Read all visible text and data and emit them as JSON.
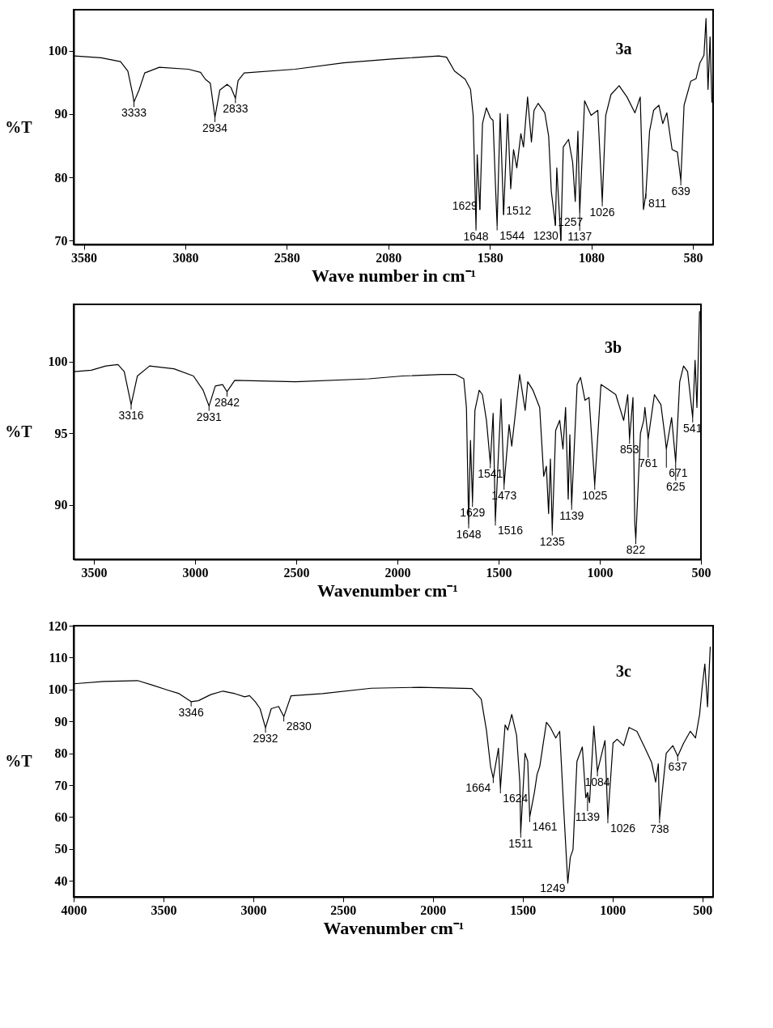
{
  "chart_data": [
    {
      "type": "line",
      "title": "3a",
      "xlabel": "Wave number in cm⁻¹",
      "ylabel": "%T",
      "xlim": [
        3630,
        480
      ],
      "ylim": [
        69.4,
        106.5
      ],
      "xticks": [
        3580,
        3080,
        2580,
        2080,
        1580,
        1080,
        580
      ],
      "yticks": [
        70,
        80,
        90,
        100
      ],
      "x": [
        3626,
        3495,
        3399,
        3363,
        3339,
        3333,
        3308,
        3280,
        3208,
        3065,
        3005,
        2981,
        2957,
        2934,
        2910,
        2874,
        2855,
        2833,
        2820,
        2790,
        2539,
        2301,
        2062,
        2015,
        1832,
        1793,
        1754,
        1701,
        1675,
        1662,
        1648,
        1642,
        1629,
        1616,
        1597,
        1577,
        1564,
        1551,
        1544,
        1529,
        1512,
        1492,
        1477,
        1463,
        1447,
        1427,
        1414,
        1394,
        1375,
        1362,
        1342,
        1309,
        1290,
        1277,
        1257,
        1250,
        1230,
        1218,
        1192,
        1172,
        1159,
        1146,
        1137,
        1113,
        1081,
        1048,
        1026,
        1009,
        983,
        943,
        904,
        865,
        839,
        823,
        811,
        793,
        773,
        747,
        728,
        708,
        682,
        656,
        639,
        623,
        590,
        564,
        545,
        525,
        515,
        505,
        495,
        486
      ],
      "series": [
        {
          "color": "#000000",
          "values": [
            99.2,
            98.9,
            98.3,
            96.8,
            93.1,
            91.9,
            93.8,
            96.5,
            97.4,
            97.1,
            96.6,
            95.5,
            94.9,
            89.5,
            93.8,
            94.7,
            94.2,
            92.5,
            95.3,
            96.5,
            97.1,
            98.1,
            98.7,
            98.8,
            99.2,
            99.0,
            96.8,
            95.5,
            93.9,
            89.8,
            72.0,
            83.6,
            74.9,
            88.5,
            91.0,
            89.4,
            89.0,
            77.8,
            72.4,
            90.1,
            74.1,
            90.0,
            78.2,
            84.4,
            81.5,
            86.9,
            84.8,
            92.7,
            85.6,
            90.6,
            91.7,
            90.2,
            86.5,
            77.8,
            72.4,
            81.5,
            70.0,
            84.8,
            86.0,
            82.4,
            76.2,
            87.3,
            74.5,
            92.1,
            89.8,
            90.6,
            76.2,
            89.8,
            93.1,
            94.5,
            92.7,
            90.2,
            92.7,
            74.9,
            77.4,
            87.3,
            90.6,
            91.4,
            88.5,
            90.2,
            84.4,
            84.0,
            79.5,
            91.4,
            95.2,
            95.6,
            98.1,
            99.3,
            105.1,
            93.9,
            102.2,
            91.9
          ]
        }
      ],
      "annotations": [
        {
          "text": "3333",
          "x": 3333,
          "y": 91.9
        },
        {
          "text": "2934",
          "x": 2934,
          "y": 89.5
        },
        {
          "text": "2833",
          "x": 2833,
          "y": 92.5
        },
        {
          "text": "1648",
          "x": 1648,
          "y": 72.0
        },
        {
          "text": "1629",
          "x": 1629,
          "y": 74.9
        },
        {
          "text": "1544",
          "x": 1544,
          "y": 72.4
        },
        {
          "text": "1512",
          "x": 1512,
          "y": 74.1
        },
        {
          "text": "1257",
          "x": 1257,
          "y": 72.4
        },
        {
          "text": "1230",
          "x": 1230,
          "y": 70.0
        },
        {
          "text": "1137",
          "x": 1137,
          "y": 74.5
        },
        {
          "text": "1026",
          "x": 1026,
          "y": 76.2
        },
        {
          "text": "811",
          "x": 811,
          "y": 77.4
        },
        {
          "text": "639",
          "x": 639,
          "y": 79.5
        }
      ]
    },
    {
      "type": "line",
      "title": "3b",
      "xlabel": "Wavenumber cm⁻¹",
      "ylabel": "%T",
      "xlim": [
        3600,
        500
      ],
      "ylim": [
        86.2,
        104
      ],
      "xticks": [
        3500,
        3000,
        2500,
        2000,
        1500,
        1000,
        500
      ],
      "yticks": [
        90,
        95,
        100
      ],
      "x": [
        3598,
        3513,
        3441,
        3381,
        3350,
        3316,
        3285,
        3225,
        3104,
        3008,
        2960,
        2931,
        2900,
        2864,
        2842,
        2804,
        2503,
        2142,
        1975,
        1781,
        1712,
        1672,
        1659,
        1648,
        1639,
        1629,
        1617,
        1596,
        1580,
        1560,
        1541,
        1527,
        1516,
        1488,
        1473,
        1448,
        1435,
        1396,
        1369,
        1356,
        1330,
        1297,
        1277,
        1264,
        1253,
        1244,
        1235,
        1218,
        1198,
        1182,
        1169,
        1156,
        1148,
        1139,
        1112,
        1095,
        1073,
        1053,
        1025,
        994,
        961,
        921,
        882,
        862,
        853,
        836,
        827,
        822,
        799,
        783,
        777,
        761,
        730,
        698,
        678,
        671,
        645,
        625,
        605,
        586,
        566,
        541,
        529,
        520,
        507
      ],
      "series": [
        {
          "color": "#000000",
          "values": [
            99.3,
            99.4,
            99.7,
            99.8,
            99.3,
            97.0,
            99.0,
            99.7,
            99.5,
            99.0,
            98.0,
            96.9,
            98.3,
            98.4,
            97.9,
            98.7,
            98.6,
            98.8,
            99.0,
            99.1,
            99.1,
            98.8,
            96.8,
            88.7,
            94.5,
            90.2,
            96.6,
            98.0,
            97.7,
            95.9,
            92.9,
            96.4,
            88.9,
            97.4,
            91.4,
            95.6,
            94.1,
            99.1,
            96.6,
            98.6,
            98.0,
            96.8,
            92.0,
            92.7,
            89.4,
            93.2,
            88.2,
            95.2,
            95.9,
            93.9,
            96.8,
            90.4,
            94.9,
            90.0,
            98.4,
            98.9,
            97.3,
            97.5,
            91.4,
            98.4,
            98.1,
            97.7,
            95.9,
            97.7,
            94.6,
            97.5,
            88.7,
            87.6,
            95.0,
            95.9,
            96.8,
            94.6,
            97.7,
            97.0,
            94.8,
            93.9,
            96.1,
            93.0,
            98.6,
            99.7,
            99.3,
            96.1,
            100.1,
            96.8,
            103.5
          ]
        }
      ],
      "annotations": [
        {
          "text": "3316",
          "x": 3316,
          "y": 97.0
        },
        {
          "text": "2931",
          "x": 2931,
          "y": 96.9
        },
        {
          "text": "2842",
          "x": 2842,
          "y": 97.9
        },
        {
          "text": "1648",
          "x": 1648,
          "y": 88.7
        },
        {
          "text": "1629",
          "x": 1629,
          "y": 90.2
        },
        {
          "text": "1541",
          "x": 1541,
          "y": 92.9
        },
        {
          "text": "1516",
          "x": 1516,
          "y": 88.9
        },
        {
          "text": "1473",
          "x": 1473,
          "y": 91.4
        },
        {
          "text": "1235",
          "x": 1235,
          "y": 88.2
        },
        {
          "text": "1139",
          "x": 1139,
          "y": 90.0
        },
        {
          "text": "1025",
          "x": 1025,
          "y": 91.4
        },
        {
          "text": "853",
          "x": 853,
          "y": 94.6
        },
        {
          "text": "822",
          "x": 822,
          "y": 87.6
        },
        {
          "text": "761",
          "x": 761,
          "y": 94.6
        },
        {
          "text": "671",
          "x": 671,
          "y": 93.9
        },
        {
          "text": "625",
          "x": 625,
          "y": 93.0
        },
        {
          "text": "541",
          "x": 541,
          "y": 96.1
        }
      ]
    },
    {
      "type": "line",
      "title": "3c",
      "xlabel": "Wavenumber cm⁻¹",
      "ylabel": "%T",
      "xlim": [
        4000,
        440
      ],
      "ylim": [
        35,
        120
      ],
      "xticks": [
        4000,
        3500,
        3000,
        2500,
        2000,
        1500,
        1000,
        500
      ],
      "yticks": [
        40,
        50,
        60,
        70,
        80,
        90,
        100,
        110,
        120
      ],
      "x": [
        4000,
        3833,
        3644,
        3562,
        3481,
        3413,
        3346,
        3305,
        3237,
        3169,
        3102,
        3048,
        3021,
        2989,
        2962,
        2932,
        2900,
        2859,
        2830,
        2790,
        2614,
        2343,
        2072,
        1783,
        1731,
        1702,
        1679,
        1664,
        1635,
        1624,
        1598,
        1583,
        1561,
        1534,
        1516,
        1511,
        1487,
        1472,
        1461,
        1435,
        1420,
        1405,
        1368,
        1346,
        1316,
        1294,
        1272,
        1249,
        1235,
        1220,
        1198,
        1168,
        1149,
        1139,
        1128,
        1104,
        1084,
        1042,
        1026,
        997,
        975,
        938,
        908,
        864,
        819,
        782,
        760,
        745,
        738,
        701,
        664,
        637,
        604,
        567,
        538,
        515,
        500,
        486,
        471,
        456
      ],
      "series": [
        {
          "color": "#000000",
          "values": [
            101.8,
            102.5,
            102.8,
            101.4,
            99.9,
            98.7,
            96.2,
            96.5,
            98.4,
            99.5,
            98.7,
            97.7,
            98.1,
            96.2,
            94.0,
            88.0,
            94.0,
            94.7,
            91.5,
            98.0,
            98.7,
            100.4,
            100.7,
            100.3,
            97.0,
            87.3,
            75.9,
            72.2,
            81.6,
            69.0,
            88.9,
            87.3,
            92.2,
            85.6,
            71.0,
            55.1,
            80.0,
            77.5,
            60.0,
            67.7,
            73.4,
            75.9,
            89.7,
            88.1,
            84.8,
            86.9,
            62.9,
            39.3,
            47.4,
            49.8,
            77.5,
            82.0,
            66.1,
            67.7,
            64.5,
            88.5,
            74.3,
            84.0,
            59.6,
            83.2,
            84.4,
            82.4,
            88.1,
            86.9,
            81.6,
            77.1,
            71.0,
            76.7,
            59.6,
            80.0,
            82.4,
            79.1,
            83.2,
            86.9,
            84.8,
            92.2,
            101.1,
            108.0,
            94.6,
            113.3
          ]
        }
      ],
      "annotations": [
        {
          "text": "3346",
          "x": 3346,
          "y": 96.2
        },
        {
          "text": "2932",
          "x": 2932,
          "y": 88.0
        },
        {
          "text": "2830",
          "x": 2830,
          "y": 91.5
        },
        {
          "text": "1664",
          "x": 1664,
          "y": 72.2
        },
        {
          "text": "1624",
          "x": 1624,
          "y": 69.0
        },
        {
          "text": "1511",
          "x": 1511,
          "y": 55.1
        },
        {
          "text": "1461",
          "x": 1461,
          "y": 60.0
        },
        {
          "text": "1249",
          "x": 1249,
          "y": 39.3
        },
        {
          "text": "1139",
          "x": 1139,
          "y": 67.7
        },
        {
          "text": "1084",
          "x": 1084,
          "y": 74.3
        },
        {
          "text": "1026",
          "x": 1026,
          "y": 59.6
        },
        {
          "text": "738",
          "x": 738,
          "y": 59.6
        },
        {
          "text": "637",
          "x": 637,
          "y": 79.1
        }
      ]
    }
  ]
}
